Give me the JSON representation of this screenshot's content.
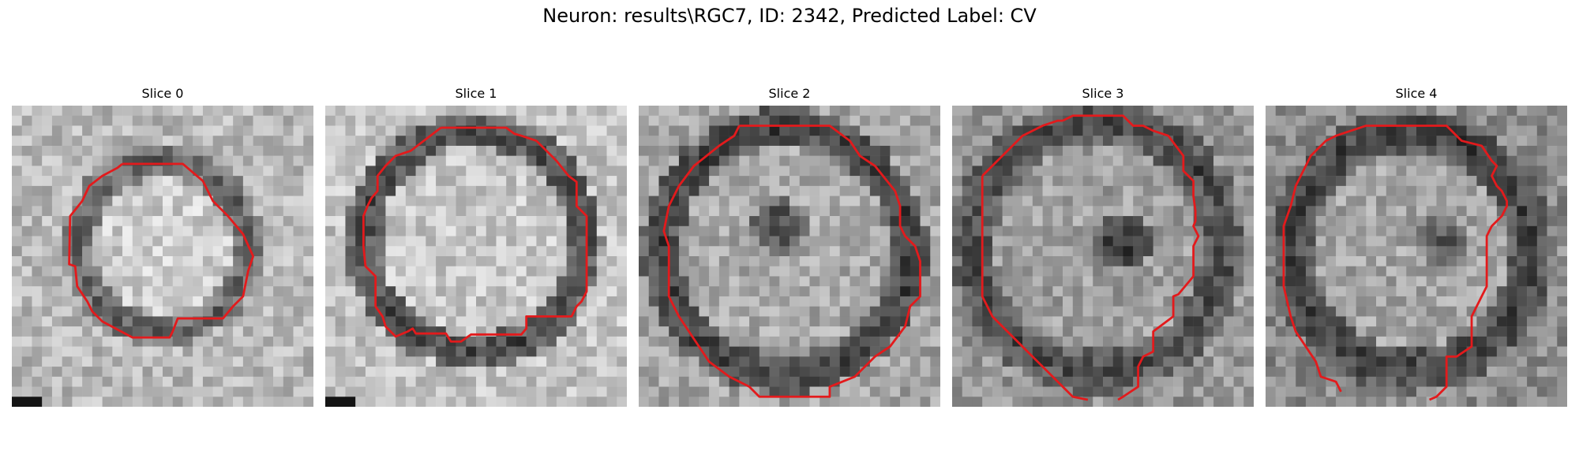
{
  "figure": {
    "title": "Neuron: results\\RGC7, ID: 2342, Predicted Label: CV",
    "contour_color": "#e31a1c",
    "slices": [
      {
        "title": "Slice 0"
      },
      {
        "title": "Slice 1"
      },
      {
        "title": "Slice 2"
      },
      {
        "title": "Slice 3"
      },
      {
        "title": "Slice 4"
      }
    ]
  }
}
